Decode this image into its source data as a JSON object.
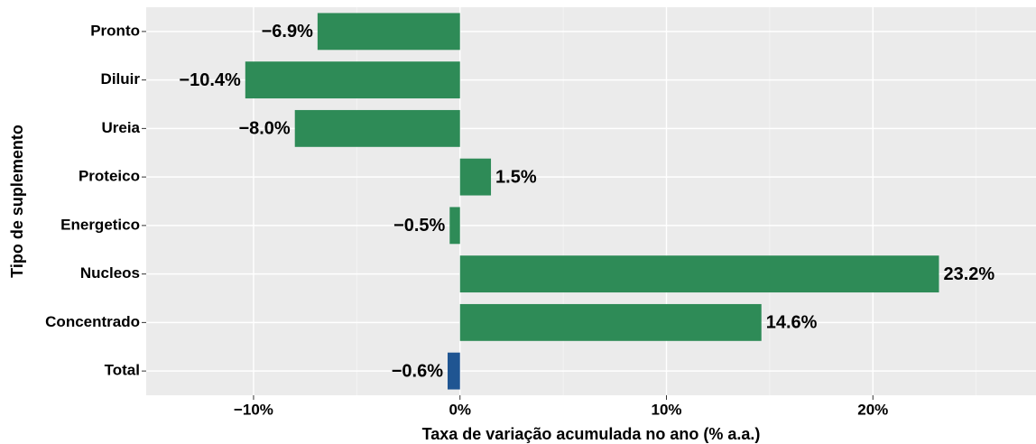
{
  "chart_data": {
    "type": "bar",
    "orientation": "horizontal",
    "x_label": "Taxa de variação acumulada no ano (% a.a.)",
    "y_label": "Tipo de suplemento",
    "categories": [
      "Pronto",
      "Diluir",
      "Ureia",
      "Proteico",
      "Energetico",
      "Nucleos",
      "Concentrado",
      "Total"
    ],
    "values": [
      -6.9,
      -10.4,
      -8.0,
      1.5,
      -0.5,
      23.2,
      14.6,
      -0.6
    ],
    "value_labels": [
      "−6.9%",
      "−10.4%",
      "−8.0%",
      "1.5%",
      "−0.5%",
      "23.2%",
      "14.6%",
      "−0.6%"
    ],
    "colors": [
      "#2e8b57",
      "#2e8b57",
      "#2e8b57",
      "#2e8b57",
      "#2e8b57",
      "#2e8b57",
      "#2e8b57",
      "#1f5592"
    ],
    "xlim": [
      -15.2,
      27.9
    ],
    "xticks": [
      {
        "value": -10,
        "label": "−10%"
      },
      {
        "value": 0,
        "label": "0%"
      },
      {
        "value": 10,
        "label": "10%"
      },
      {
        "value": 20,
        "label": "20%"
      }
    ],
    "minor_xticks": [
      -5,
      5,
      15,
      25
    ],
    "grid": true
  }
}
